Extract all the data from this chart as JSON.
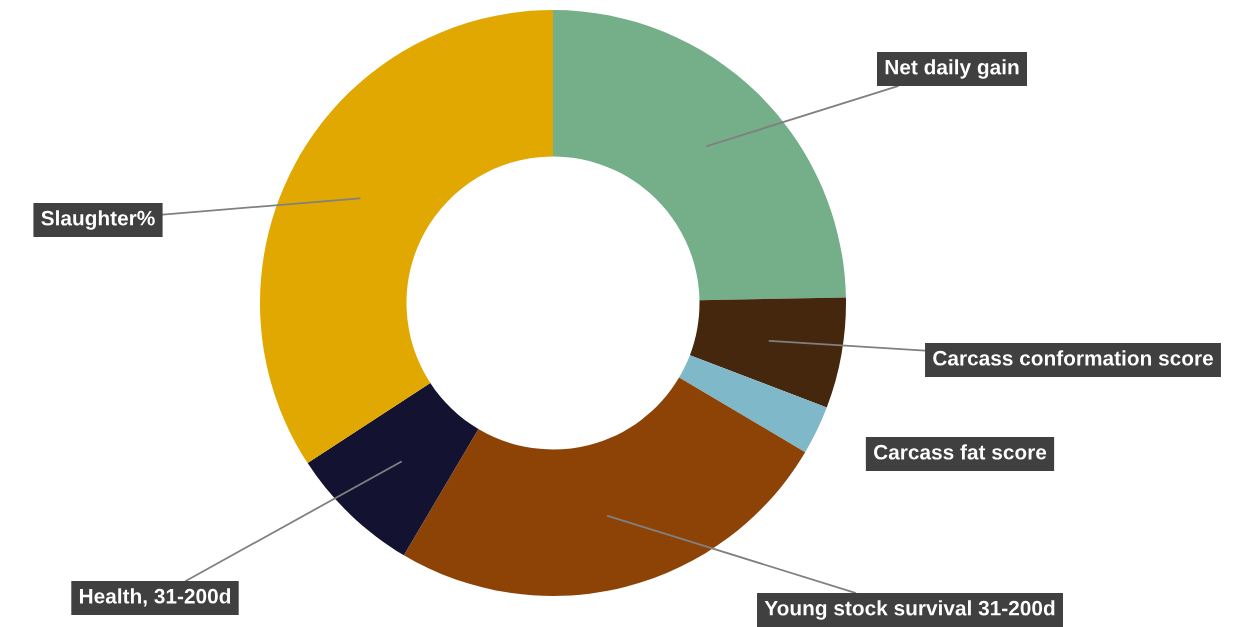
{
  "chart_data": {
    "type": "donut",
    "categories": [
      "Net daily gain",
      "Carcass conformation score",
      "Carcass fat score",
      "Young stock survival 31-200d",
      "Health, 31-200d",
      "Slaughter%"
    ],
    "values": [
      24.7,
      6.1,
      2.7,
      25.0,
      7.3,
      34.2
    ],
    "colors": [
      "#74af89",
      "#45270d",
      "#7fb8c8",
      "#8e4306",
      "#131331",
      "#e0a800"
    ],
    "legend": false
  }
}
